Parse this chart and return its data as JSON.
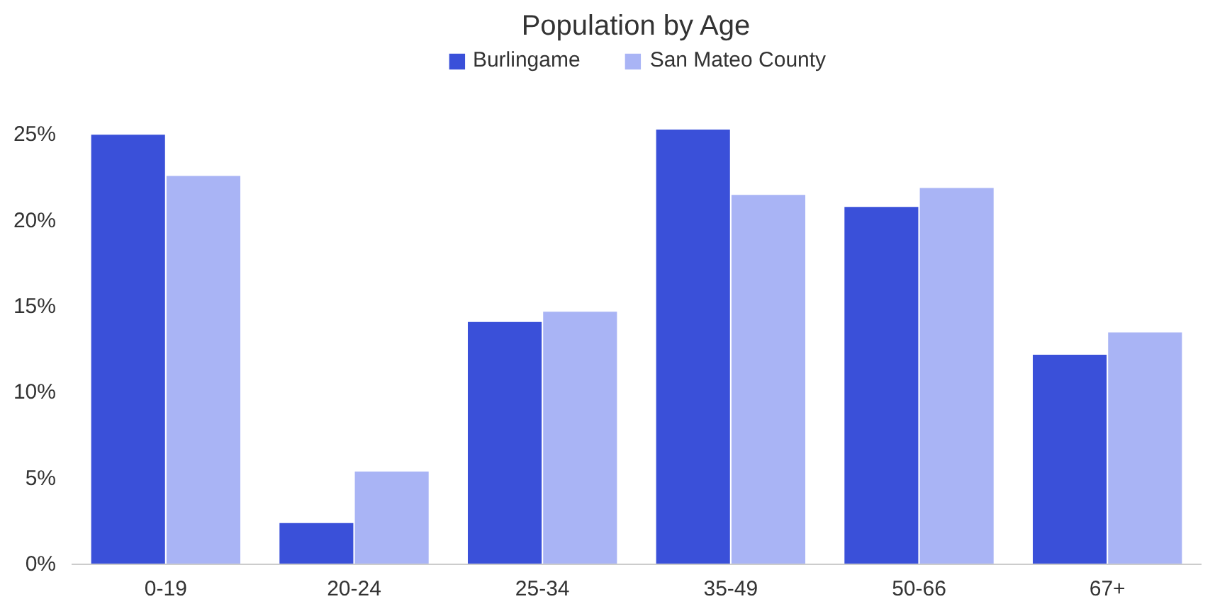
{
  "chart_data": {
    "type": "bar",
    "title": "Population by Age",
    "categories": [
      "0-19",
      "20-24",
      "25-34",
      "35-49",
      "50-66",
      "67+"
    ],
    "series": [
      {
        "name": "Burlingame",
        "color": "#3a50d9",
        "values": [
          25.0,
          2.4,
          14.1,
          25.3,
          20.8,
          12.2
        ]
      },
      {
        "name": "San Mateo County",
        "color": "#a9b4f5",
        "values": [
          22.6,
          5.4,
          14.7,
          21.5,
          21.9,
          13.5
        ]
      }
    ],
    "ylim": [
      0,
      30
    ],
    "yticks": [
      {
        "value": 0,
        "label": "0%"
      },
      {
        "value": 5,
        "label": "5%"
      },
      {
        "value": 10,
        "label": "10%"
      },
      {
        "value": 15,
        "label": "15%"
      },
      {
        "value": 20,
        "label": "20%"
      },
      {
        "value": 25,
        "label": "25%"
      }
    ],
    "grid": false,
    "legend": "top"
  }
}
